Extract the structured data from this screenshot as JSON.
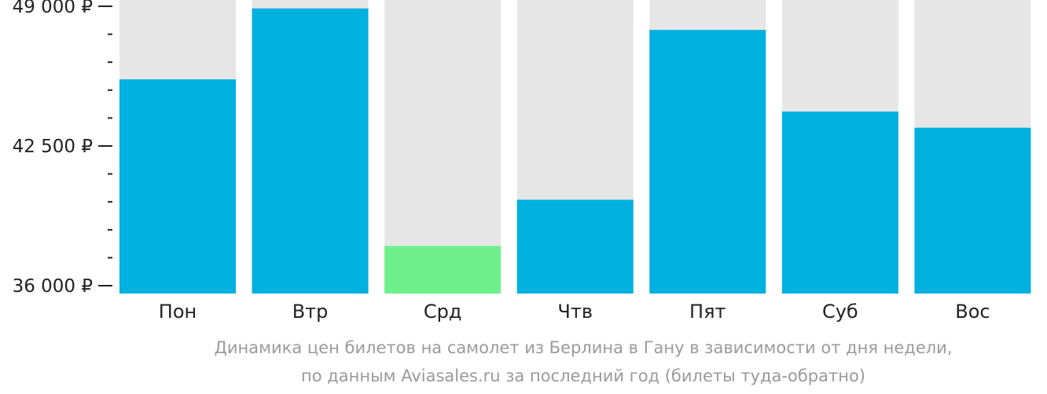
{
  "chart_data": {
    "type": "bar",
    "categories": [
      "Пон",
      "Втр",
      "Срд",
      "Чтв",
      "Пят",
      "Суб",
      "Вос"
    ],
    "values": [
      45600,
      48900,
      37850,
      40000,
      47900,
      44100,
      43350
    ],
    "ylim": [
      36000,
      49000
    ],
    "yticks": [
      {
        "value": 49000,
        "label": "49 000 ₽"
      },
      {
        "value": 42500,
        "label": "42 500 ₽"
      },
      {
        "value": 36000,
        "label": "36 000 ₽"
      }
    ],
    "minor_tick_step": 1300,
    "highlight_index": 2,
    "colors": {
      "bar": "#00b0de",
      "highlight": "#6ef08a",
      "background_bar": "#e6e6e6",
      "axis": "#222222"
    },
    "title_lines": [
      "Динамика цен билетов на самолет из Берлина в Гану в зависимости от дня недели,",
      "по данным Aviasales.ru за последний год (билеты туда-обратно)"
    ]
  }
}
